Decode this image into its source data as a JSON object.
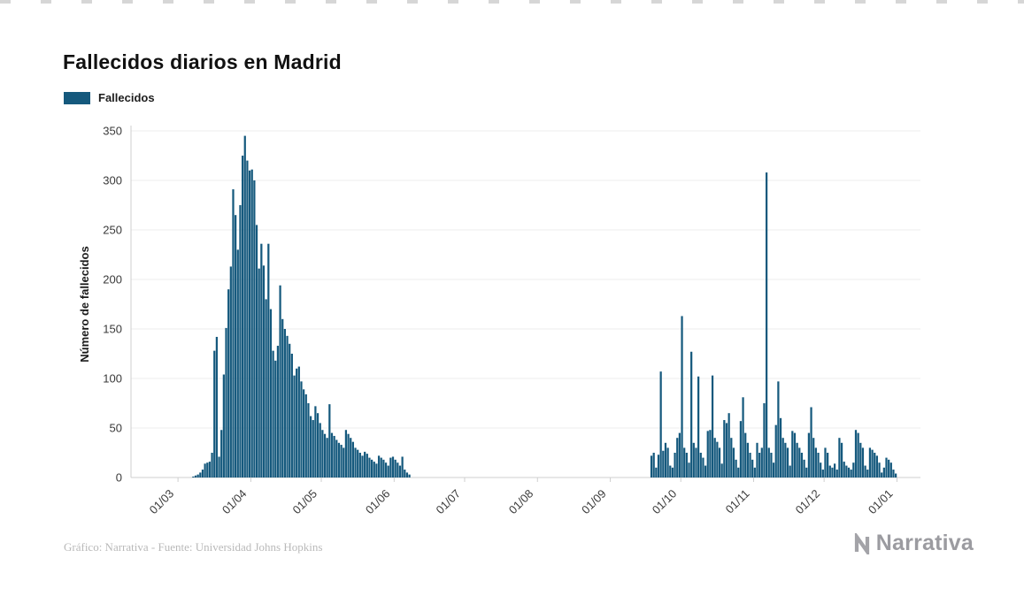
{
  "page": {
    "title": "Fallecidos diarios en Madrid",
    "footer_credit": "Gráfico: Narrativa - Fuente: Universidad Johns Hopkins",
    "brand": "Narrativa"
  },
  "legend": {
    "label": "Fallecidos"
  },
  "colors": {
    "bar": "#15597D",
    "grid": "#ececec",
    "axis": "#cfcfcf",
    "tick_text": "#3a3a3a",
    "muted": "#b9b9b9",
    "brand_gray": "#a3a3a8"
  },
  "chart_data": {
    "type": "bar",
    "title": "Fallecidos diarios en Madrid",
    "series_name": "Fallecidos",
    "xlabel": "",
    "ylabel": "Número de fallecidos",
    "ylim": [
      0,
      350
    ],
    "yticks": [
      0,
      50,
      100,
      150,
      200,
      250,
      300,
      350
    ],
    "grid": true,
    "legend_position": "top-left",
    "start_date": "2020-02-10",
    "x_domain_days": 336,
    "x_ticks": [
      {
        "label": "01/03",
        "day": 20
      },
      {
        "label": "01/04",
        "day": 51
      },
      {
        "label": "01/05",
        "day": 81
      },
      {
        "label": "01/06",
        "day": 112
      },
      {
        "label": "01/07",
        "day": 142
      },
      {
        "label": "01/08",
        "day": 173
      },
      {
        "label": "01/09",
        "day": 204
      },
      {
        "label": "01/10",
        "day": 234
      },
      {
        "label": "01/11",
        "day": 265
      },
      {
        "label": "01/12",
        "day": 295
      },
      {
        "label": "01/01",
        "day": 326
      }
    ],
    "values": [
      0,
      0,
      0,
      0,
      0,
      0,
      0,
      0,
      0,
      0,
      0,
      0,
      0,
      0,
      0,
      0,
      0,
      0,
      0,
      0,
      0,
      0,
      0,
      0,
      0,
      0,
      1,
      2,
      3,
      5,
      8,
      14,
      15,
      16,
      25,
      128,
      142,
      21,
      48,
      104,
      151,
      190,
      213,
      291,
      265,
      230,
      275,
      325,
      345,
      320,
      310,
      311,
      300,
      255,
      211,
      236,
      214,
      180,
      236,
      170,
      128,
      118,
      133,
      194,
      160,
      150,
      143,
      135,
      125,
      103,
      110,
      112,
      97,
      89,
      84,
      75,
      62,
      58,
      72,
      65,
      55,
      48,
      44,
      40,
      74,
      45,
      42,
      38,
      35,
      33,
      30,
      48,
      44,
      40,
      36,
      30,
      28,
      25,
      22,
      26,
      24,
      20,
      18,
      16,
      14,
      22,
      20,
      18,
      15,
      12,
      20,
      21,
      18,
      15,
      12,
      21,
      8,
      5,
      3,
      0,
      0,
      0,
      0,
      0,
      0,
      0,
      0,
      0,
      0,
      0,
      0,
      0,
      0,
      0,
      0,
      0,
      0,
      0,
      0,
      0,
      0,
      0,
      0,
      0,
      0,
      0,
      0,
      0,
      0,
      0,
      0,
      0,
      0,
      0,
      0,
      0,
      0,
      0,
      0,
      0,
      0,
      0,
      0,
      0,
      0,
      0,
      0,
      0,
      0,
      0,
      0,
      0,
      0,
      0,
      0,
      0,
      0,
      0,
      0,
      0,
      0,
      0,
      0,
      0,
      0,
      0,
      0,
      0,
      0,
      0,
      0,
      0,
      0,
      0,
      0,
      0,
      0,
      0,
      0,
      0,
      0,
      0,
      0,
      0,
      0,
      0,
      0,
      0,
      0,
      0,
      0,
      0,
      0,
      0,
      0,
      0,
      0,
      0,
      0,
      0,
      0,
      22,
      25,
      10,
      23,
      107,
      27,
      35,
      30,
      12,
      10,
      25,
      40,
      45,
      163,
      30,
      25,
      15,
      127,
      35,
      30,
      102,
      25,
      20,
      12,
      47,
      48,
      103,
      40,
      36,
      30,
      14,
      58,
      55,
      65,
      40,
      30,
      18,
      10,
      57,
      81,
      45,
      35,
      25,
      18,
      10,
      35,
      25,
      30,
      75,
      308,
      30,
      25,
      15,
      53,
      97,
      60,
      40,
      35,
      30,
      12,
      47,
      45,
      35,
      30,
      25,
      18,
      10,
      45,
      71,
      40,
      30,
      25,
      15,
      8,
      30,
      25,
      12,
      10,
      14,
      8,
      40,
      35,
      16,
      12,
      10,
      8,
      15,
      48,
      45,
      35,
      30,
      12,
      8,
      30,
      28,
      25,
      22,
      15,
      5,
      10,
      20,
      18,
      15,
      8,
      4
    ]
  }
}
